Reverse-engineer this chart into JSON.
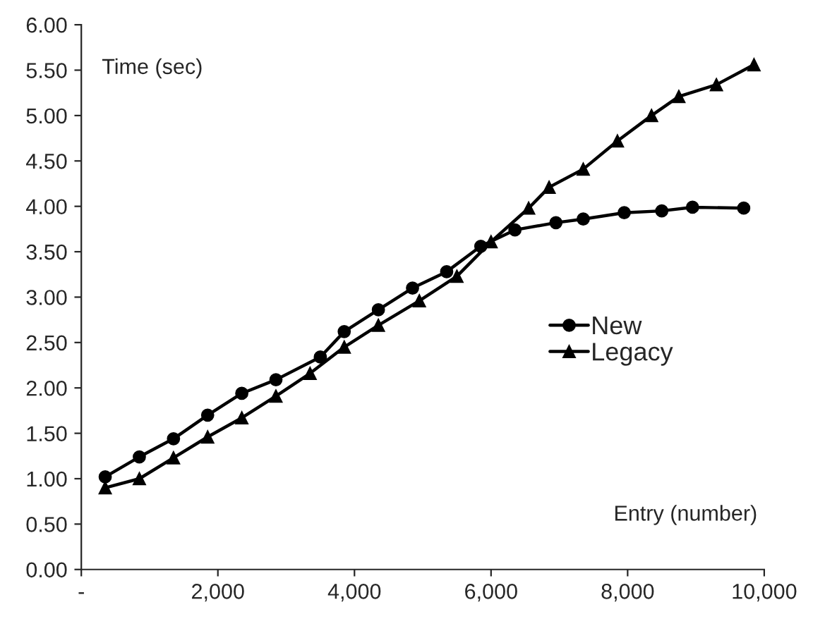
{
  "chart_data": {
    "type": "line",
    "ylabel": "Time (sec)",
    "xlabel": "Entry (number)",
    "series": [
      {
        "name": "New",
        "color": "#000000",
        "marker": "circle",
        "x": [
          350,
          850,
          1350,
          1850,
          2350,
          2850,
          3500,
          3850,
          4350,
          4850,
          5350,
          5850,
          6350,
          6950,
          7350,
          7950,
          8500,
          8950,
          9700
        ],
        "values": [
          1.02,
          1.24,
          1.44,
          1.7,
          1.94,
          2.09,
          2.34,
          2.62,
          2.86,
          3.1,
          3.28,
          3.56,
          3.74,
          3.82,
          3.86,
          3.93,
          3.95,
          3.99,
          3.98
        ]
      },
      {
        "name": "Legacy",
        "color": "#000000",
        "marker": "triangle",
        "x": [
          350,
          850,
          1350,
          1850,
          2350,
          2850,
          3350,
          3850,
          4350,
          4950,
          5500,
          6000,
          6550,
          6850,
          7350,
          7850,
          8350,
          8750,
          9300,
          9850
        ],
        "values": [
          0.9,
          1.0,
          1.23,
          1.46,
          1.67,
          1.91,
          2.16,
          2.45,
          2.69,
          2.96,
          3.23,
          3.61,
          3.98,
          4.21,
          4.41,
          4.72,
          5.0,
          5.21,
          5.34,
          5.56
        ]
      }
    ],
    "xlim": [
      0,
      10000
    ],
    "ylim": [
      0,
      6
    ],
    "xticks": [
      {
        "value": 0,
        "label": "-"
      },
      {
        "value": 2000,
        "label": "2,000"
      },
      {
        "value": 4000,
        "label": "4,000"
      },
      {
        "value": 6000,
        "label": "6,000"
      },
      {
        "value": 8000,
        "label": "8,000"
      },
      {
        "value": 10000,
        "label": "10,000"
      }
    ],
    "yticks": [
      {
        "value": 0,
        "label": "0.00"
      },
      {
        "value": 0.5,
        "label": "0.50"
      },
      {
        "value": 1,
        "label": "1.00"
      },
      {
        "value": 1.5,
        "label": "1.50"
      },
      {
        "value": 2,
        "label": "2.00"
      },
      {
        "value": 2.5,
        "label": "2.50"
      },
      {
        "value": 3,
        "label": "3.00"
      },
      {
        "value": 3.5,
        "label": "3.50"
      },
      {
        "value": 4,
        "label": "4.00"
      },
      {
        "value": 4.5,
        "label": "4.50"
      },
      {
        "value": 5,
        "label": "5.00"
      },
      {
        "value": 5.5,
        "label": "5.50"
      },
      {
        "value": 6,
        "label": "6.00"
      }
    ],
    "legend": "right",
    "grid": false
  }
}
